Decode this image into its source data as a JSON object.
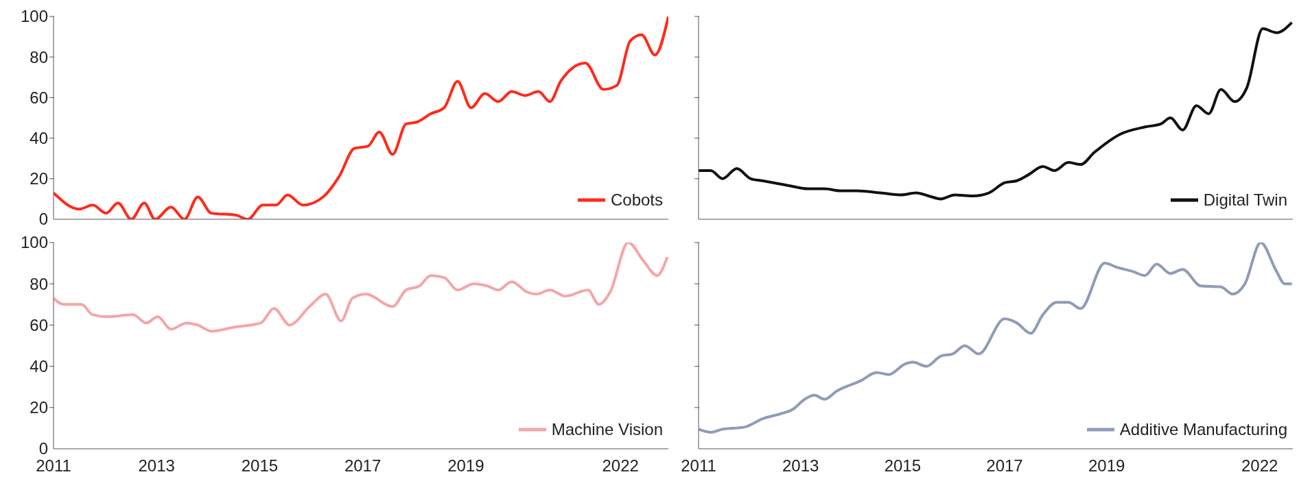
{
  "chart_data": [
    {
      "type": "line",
      "xlim": [
        2011,
        2022.93
      ],
      "xticks": [
        2011,
        2013,
        2015,
        2017,
        2019,
        2022
      ],
      "ylim": [
        0,
        100
      ],
      "yticks": [
        0,
        20,
        40,
        60,
        80,
        100
      ],
      "grid": false,
      "legend": "bottom right",
      "tick_labels": "y",
      "series": [
        {
          "name": "Cobots",
          "color": "#ff2a1a",
          "x": [
            2011,
            2011.5,
            2011.76,
            2012.02,
            2012.25,
            2012.51,
            2012.76,
            2012.97,
            2013.28,
            2013.54,
            2013.8,
            2014.06,
            2014.54,
            2014.77,
            2015.06,
            2015.32,
            2015.54,
            2015.84,
            2016.23,
            2016.54,
            2016.84,
            2017.1,
            2017.32,
            2017.58,
            2017.84,
            2018.06,
            2018.32,
            2018.58,
            2018.84,
            2019.1,
            2019.37,
            2019.63,
            2019.89,
            2020.15,
            2020.41,
            2020.63,
            2020.84,
            2021.32,
            2021.67,
            2021.93,
            2022.19,
            2022.41,
            2022.67,
            2022.93
          ],
          "values": [
            13,
            5,
            7,
            3,
            8,
            0,
            8,
            0,
            6,
            0,
            11,
            3,
            2,
            0,
            7,
            7,
            12,
            7,
            11,
            21,
            35,
            36,
            43,
            32,
            47,
            48,
            52,
            55,
            68,
            55,
            62,
            58,
            63,
            61,
            63,
            58,
            68,
            77,
            64,
            66,
            88,
            91,
            81,
            100
          ]
        }
      ]
    },
    {
      "type": "line",
      "xlim": [
        2011,
        2022.65
      ],
      "xticks": [
        2011,
        2013,
        2015,
        2017,
        2019,
        2022
      ],
      "ylim": [
        0,
        100
      ],
      "yticks": [
        0,
        20,
        40,
        60,
        80,
        100
      ],
      "grid": false,
      "legend": "bottom right",
      "tick_labels": false,
      "series": [
        {
          "name": "Digital Twin",
          "color": "#111111",
          "x": [
            2011,
            2011.24,
            2011.47,
            2011.75,
            2012.02,
            2012.25,
            2012.69,
            2013.16,
            2013.47,
            2013.78,
            2014.1,
            2014.57,
            2014.96,
            2015.27,
            2015.51,
            2015.75,
            2016.02,
            2016.37,
            2016.69,
            2017,
            2017.24,
            2017.47,
            2017.75,
            2017.98,
            2018.25,
            2018.49,
            2018.76,
            2019.27,
            2019.75,
            2020.06,
            2020.25,
            2020.49,
            2020.76,
            2021,
            2021.24,
            2021.51,
            2021.75,
            2022.06,
            2022.33,
            2022.63
          ],
          "values": [
            24,
            24,
            20,
            25,
            20,
            19,
            17,
            15,
            15,
            14,
            14,
            13,
            12,
            13,
            11.5,
            10,
            12,
            11.5,
            13,
            18,
            19,
            22,
            26,
            24,
            28,
            27,
            33,
            42,
            45.5,
            47,
            50,
            44,
            56,
            52,
            64,
            58,
            65,
            94,
            92,
            97
          ]
        }
      ]
    },
    {
      "type": "line",
      "xlim": [
        2011,
        2022.93
      ],
      "xticks": [
        2011,
        2013,
        2015,
        2017,
        2019,
        2022
      ],
      "ylim": [
        0,
        100
      ],
      "yticks": [
        0,
        20,
        40,
        60,
        80,
        100
      ],
      "grid": false,
      "legend": "bottom right",
      "series": [
        {
          "name": "Machine Vision",
          "color": "#f4a6a8",
          "x": [
            2011,
            2011.19,
            2011.54,
            2011.76,
            2012.06,
            2012.54,
            2012.8,
            2013.02,
            2013.28,
            2013.58,
            2013.8,
            2014.06,
            2014.5,
            2015.02,
            2015.28,
            2015.58,
            2015.97,
            2016.28,
            2016.58,
            2016.8,
            2017.06,
            2017.58,
            2017.84,
            2018.1,
            2018.32,
            2018.58,
            2018.84,
            2019.15,
            2019.41,
            2019.63,
            2019.89,
            2020.19,
            2020.37,
            2020.63,
            2020.93,
            2021.37,
            2021.58,
            2021.8,
            2022.15,
            2022.45,
            2022.71,
            2022.91
          ],
          "values": [
            73,
            70,
            70,
            65,
            64,
            65,
            61,
            64,
            58,
            61,
            60,
            57,
            59,
            61,
            68,
            60,
            69,
            75,
            62,
            73,
            75,
            69,
            77,
            79,
            84,
            83,
            77,
            80,
            79,
            77,
            81,
            76,
            75,
            77,
            74,
            77,
            70,
            76,
            100,
            91,
            84,
            93
          ]
        }
      ]
    },
    {
      "type": "line",
      "xlim": [
        2011,
        2022.65
      ],
      "xticks": [
        2011,
        2013,
        2015,
        2017,
        2019,
        2022
      ],
      "ylim": [
        0,
        100
      ],
      "yticks": [
        0,
        20,
        40,
        60,
        80,
        100
      ],
      "grid": false,
      "legend": "bottom right",
      "tick_labels": "x",
      "series": [
        {
          "name": "Additive Manufacturing",
          "color": "#8e9cb8",
          "x": [
            2011,
            2011.24,
            2011.47,
            2011.9,
            2012.25,
            2012.61,
            2012.84,
            2013.08,
            2013.27,
            2013.47,
            2013.71,
            2014.18,
            2014.49,
            2014.73,
            2015.04,
            2015.2,
            2015.47,
            2015.75,
            2015.98,
            2016.22,
            2016.49,
            2017,
            2017.24,
            2017.51,
            2017.75,
            2018.02,
            2018.25,
            2018.49,
            2018.96,
            2019.2,
            2019.51,
            2019.75,
            2019.98,
            2020.25,
            2020.49,
            2020.84,
            2021.24,
            2021.47,
            2021.71,
            2022.02,
            2022.33,
            2022.49,
            2022.63
          ],
          "values": [
            9.5,
            8,
            9.5,
            10.5,
            14.5,
            17,
            19,
            24,
            26,
            24,
            28,
            33,
            37,
            36,
            41,
            42,
            40,
            45,
            46,
            50,
            46,
            63,
            61,
            56,
            65,
            71,
            71,
            68,
            90,
            88,
            86,
            84,
            89.5,
            85,
            87,
            79,
            78.5,
            75,
            80,
            100,
            86,
            80,
            80
          ]
        }
      ]
    }
  ]
}
